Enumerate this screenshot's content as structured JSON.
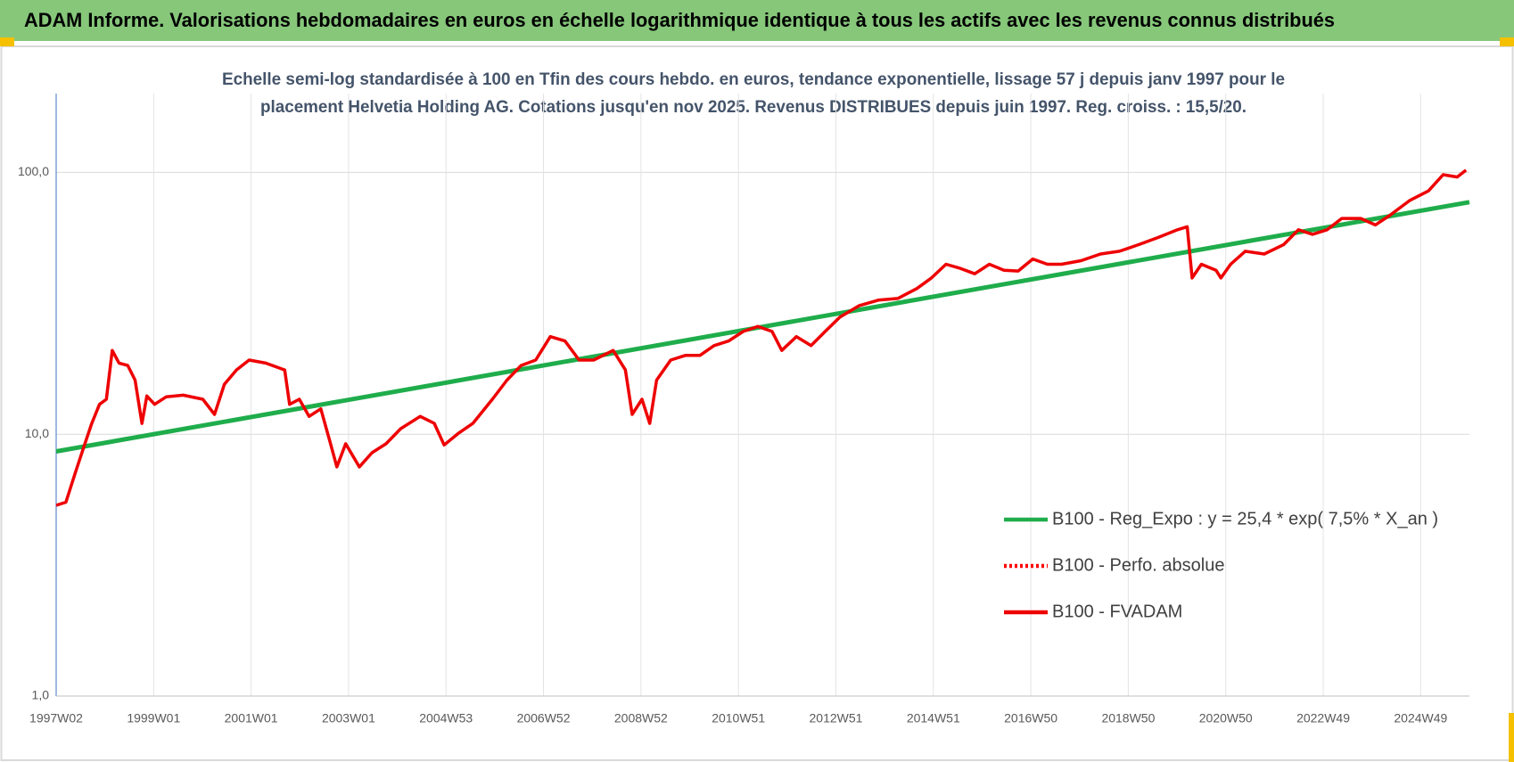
{
  "chart_data": {
    "type": "line",
    "title": "ADAM Informe. Valorisations hebdomadaires en euros en échelle logarithmique identique à tous les actifs avec les revenus connus distribués",
    "subtitle": [
      "Echelle semi-log standardisée à 100 en Tfin des cours hebdo. en euros, tendance exponentielle, lissage 57 j depuis janv 1997 pour le",
      "placement Helvetia Holding AG. Cotations jusqu'en nov 2025. Revenus DISTRIBUES depuis juin 1997. Reg. croiss. : 15,5/20."
    ],
    "log_y": true,
    "grid": true,
    "legend": "right",
    "xlim": [
      1997,
      2026
    ],
    "xticks": [
      {
        "value": 1997,
        "label": "1997W02"
      },
      {
        "value": 1999,
        "label": "1999W01"
      },
      {
        "value": 2001,
        "label": "2001W01"
      },
      {
        "value": 2003,
        "label": "2003W01"
      },
      {
        "value": 2005,
        "label": "2004W53"
      },
      {
        "value": 2007,
        "label": "2006W52"
      },
      {
        "value": 2009,
        "label": "2008W52"
      },
      {
        "value": 2011,
        "label": "2010W51"
      },
      {
        "value": 2013,
        "label": "2012W51"
      },
      {
        "value": 2015,
        "label": "2014W51"
      },
      {
        "value": 2017,
        "label": "2016W50"
      },
      {
        "value": 2019,
        "label": "2018W50"
      },
      {
        "value": 2021,
        "label": "2020W50"
      },
      {
        "value": 2023,
        "label": "2022W49"
      },
      {
        "value": 2025,
        "label": "2024W49"
      }
    ],
    "ylim": [
      1,
      200
    ],
    "yticks": [
      {
        "value": 1,
        "label": "1,0"
      },
      {
        "value": 10,
        "label": "10,0"
      },
      {
        "value": 100,
        "label": "100,0"
      }
    ],
    "series": [
      {
        "name": "B100 - Reg_Expo : y = 25,4 * exp( 7,5% *  X_an )",
        "color": "#1fad4c",
        "x": [
          1997,
          2026
        ],
        "values": [
          8.6,
          77
        ]
      },
      {
        "name": "B100 - Perfo. absolue",
        "color": "#ff0000",
        "dash": "dotted"
      },
      {
        "name": "B100 - FVADAM",
        "color": "#ee0000",
        "x": [
          1997.0,
          1997.2,
          1997.4,
          1997.59,
          1997.73,
          1997.89,
          1998.03,
          1998.15,
          1998.29,
          1998.47,
          1998.62,
          1998.76,
          1998.86,
          1999.02,
          1999.26,
          1999.61,
          2000.01,
          2000.25,
          2000.45,
          2000.7,
          2000.96,
          2001.3,
          2001.69,
          2001.79,
          2001.99,
          2002.19,
          2002.43,
          2002.63,
          2002.76,
          2002.94,
          2003.22,
          2003.48,
          2003.77,
          2004.07,
          2004.47,
          2004.76,
          2004.96,
          2005.26,
          2005.55,
          2005.95,
          2006.25,
          2006.54,
          2006.84,
          2007.14,
          2007.44,
          2007.73,
          2008.03,
          2008.43,
          2008.68,
          2008.82,
          2009.02,
          2009.18,
          2009.32,
          2009.61,
          2009.91,
          2010.21,
          2010.5,
          2010.8,
          2011.1,
          2011.4,
          2011.69,
          2011.89,
          2012.19,
          2012.49,
          2012.78,
          2013.08,
          2013.48,
          2013.87,
          2014.27,
          2014.66,
          2014.96,
          2015.26,
          2015.55,
          2015.85,
          2016.15,
          2016.45,
          2016.74,
          2017.04,
          2017.34,
          2017.63,
          2018.03,
          2018.43,
          2018.82,
          2019.22,
          2019.61,
          2020.01,
          2020.21,
          2020.31,
          2020.5,
          2020.8,
          2020.9,
          2021.1,
          2021.4,
          2021.79,
          2022.19,
          2022.49,
          2022.78,
          2023.08,
          2023.38,
          2023.77,
          2024.07,
          2024.37,
          2024.77,
          2025.16,
          2025.46,
          2025.75,
          2025.93
        ],
        "values": [
          5.35,
          5.5,
          7.2,
          9.2,
          11,
          13,
          13.6,
          20.9,
          18.7,
          18.3,
          16.1,
          11,
          14,
          13,
          13.9,
          14.1,
          13.6,
          11.9,
          15.5,
          17.6,
          19.2,
          18.7,
          17.6,
          13,
          13.6,
          11.7,
          12.5,
          9.2,
          7.5,
          9.2,
          7.5,
          8.5,
          9.2,
          10.5,
          11.7,
          11,
          9.1,
          10.1,
          11,
          13.6,
          16.1,
          18.3,
          19.2,
          23.6,
          22.7,
          19.2,
          19.2,
          20.9,
          17.6,
          11.9,
          13.6,
          11,
          16.1,
          19.2,
          20,
          20,
          21.8,
          22.7,
          24.7,
          25.8,
          24.7,
          20.9,
          23.6,
          21.8,
          24.7,
          28,
          31,
          32.5,
          33,
          36,
          39.5,
          44.6,
          43,
          41,
          44.6,
          42.3,
          42,
          46.7,
          44.6,
          44.6,
          46,
          48.8,
          50,
          53,
          56.4,
          60.4,
          62,
          39.5,
          44.6,
          42.3,
          39.5,
          44.6,
          50,
          48.8,
          53,
          60.4,
          58,
          60.4,
          66.7,
          66.7,
          63,
          68.6,
          78,
          85,
          98,
          96,
          102
        ]
      }
    ]
  }
}
